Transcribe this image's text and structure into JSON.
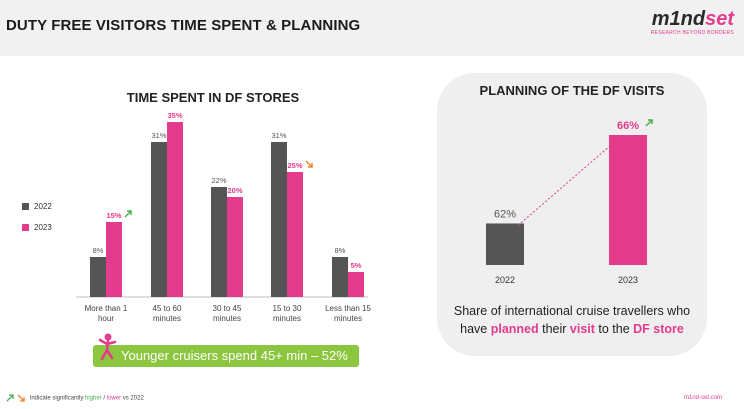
{
  "header": {
    "title": "DUTY FREE VISITORS TIME SPENT & PLANNING",
    "logo_part1": "m1nd",
    "logo_part2": "set",
    "logo_tagline": "RESEARCH BEYOND BORDERS"
  },
  "colors": {
    "y2022": "#555555",
    "y2023": "#e43b8d",
    "higher": "#4caf50",
    "lower": "#f0812a",
    "callout": "#8cc63f"
  },
  "chart_data": [
    {
      "type": "bar",
      "title": "TIME SPENT IN DF STORES",
      "categories": [
        "More than 1 hour",
        "45 to 60 minutes",
        "30 to 45 minutes",
        "15 to 30 minutes",
        "Less than 15 minutes"
      ],
      "series": [
        {
          "name": "2022",
          "values": [
            8,
            31,
            22,
            31,
            8
          ],
          "labels": [
            "8%",
            "31%",
            "22%",
            "31%",
            "8%"
          ]
        },
        {
          "name": "2023",
          "values": [
            15,
            35,
            20,
            25,
            5
          ],
          "labels": [
            "15%",
            "35%",
            "20%",
            "25%",
            "5%"
          ]
        }
      ],
      "significance_2023": [
        "higher",
        "none",
        "none",
        "lower",
        "none"
      ],
      "ylim": [
        0,
        36
      ],
      "legend_position": "left",
      "grid": false
    },
    {
      "type": "bar",
      "title": "PLANNING OF THE DF VISITS",
      "categories": [
        "2022",
        "2023"
      ],
      "values": [
        62,
        66
      ],
      "labels": [
        "62%",
        "66%"
      ],
      "significance": [
        "none",
        "higher"
      ],
      "ylim": [
        0,
        66
      ],
      "grid": false
    }
  ],
  "callout": {
    "text": "Younger cruisers spend 45+ min – 52%",
    "icon": "runner-icon"
  },
  "planning_caption": {
    "line1": "Share of international cruise travellers who",
    "p1": "have ",
    "p2": "planned",
    "p3": " their ",
    "p4": "visit",
    "p5": " to the ",
    "p6": "DF store"
  },
  "footnote": {
    "prefix": "Indicate significantly ",
    "higher": "higher",
    "sep": " / ",
    "lower": "lower",
    "suffix": " vs 2022"
  },
  "site": "m1nd-set.com"
}
